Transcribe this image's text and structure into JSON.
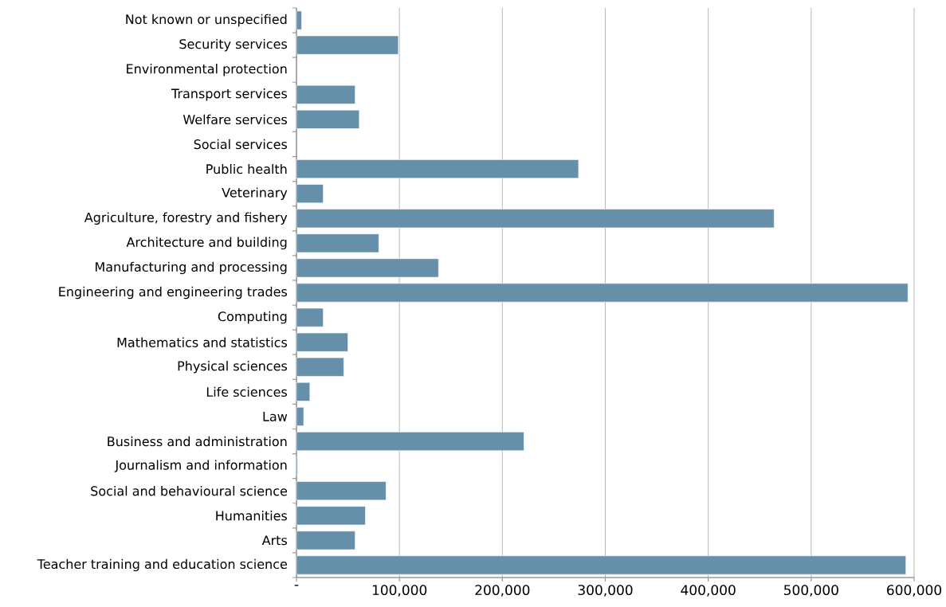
{
  "chart_data": {
    "type": "bar",
    "orientation": "horizontal",
    "color": "#6690aa",
    "grid": "x",
    "categories": [
      "Not known or unspecified",
      "Security services",
      "Environmental protection",
      "Transport services",
      "Welfare services",
      "Social services",
      "Public health",
      "Veterinary",
      "Agriculture, forestry and fishery",
      "Architecture and building",
      "Manufacturing and processing",
      "Engineering and engineering trades",
      "Computing",
      "Mathematics and statistics",
      "Physical sciences",
      "Life sciences",
      "Law",
      "Business and administration",
      "Journalism and information",
      "Social and behavioural science",
      "Humanities",
      "Arts",
      "Teacher training and education science"
    ],
    "values": [
      5000,
      99000,
      null,
      57000,
      61000,
      null,
      274000,
      26000,
      464000,
      80000,
      138000,
      594000,
      26000,
      50000,
      46000,
      13000,
      7000,
      221000,
      1000,
      87000,
      67000,
      57000,
      592000
    ],
    "xlim": [
      0,
      600000
    ],
    "xticks": [
      {
        "value": 0,
        "label": "-"
      },
      {
        "value": 100000,
        "label": "100,000"
      },
      {
        "value": 200000,
        "label": "200,000"
      },
      {
        "value": 300000,
        "label": "300,000"
      },
      {
        "value": 400000,
        "label": "400,000"
      },
      {
        "value": 500000,
        "label": "500,000"
      },
      {
        "value": 600000,
        "label": "600,000"
      }
    ]
  }
}
